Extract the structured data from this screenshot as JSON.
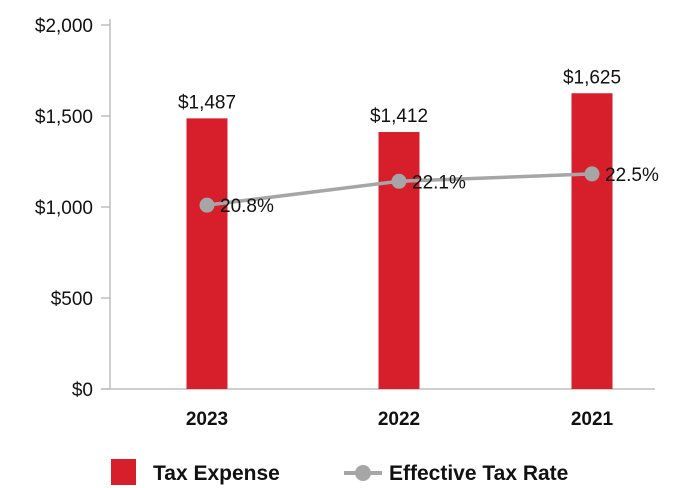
{
  "chart_data": {
    "type": "bar",
    "categories": [
      "2023",
      "2022",
      "2021"
    ],
    "ylim": [
      0,
      2000
    ],
    "y_ticks": [
      "$0",
      "$500",
      "$1,000",
      "$1,500",
      "$2,000"
    ],
    "y_tick_values": [
      0,
      500,
      1000,
      1500,
      2000
    ],
    "grid": false,
    "legend_position": "bottom",
    "series": [
      {
        "name": "Tax Expense",
        "type": "bar",
        "color": "#d71f2b",
        "values": [
          1487,
          1412,
          1625
        ],
        "labels": [
          "$1,487",
          "$1,412",
          "$1,625"
        ]
      },
      {
        "name": "Effective Tax Rate",
        "type": "line",
        "color": "#a6a6a6",
        "values": [
          20.8,
          22.1,
          22.5
        ],
        "labels": [
          "20.8%",
          "22.1%",
          "22.5%"
        ]
      }
    ]
  }
}
